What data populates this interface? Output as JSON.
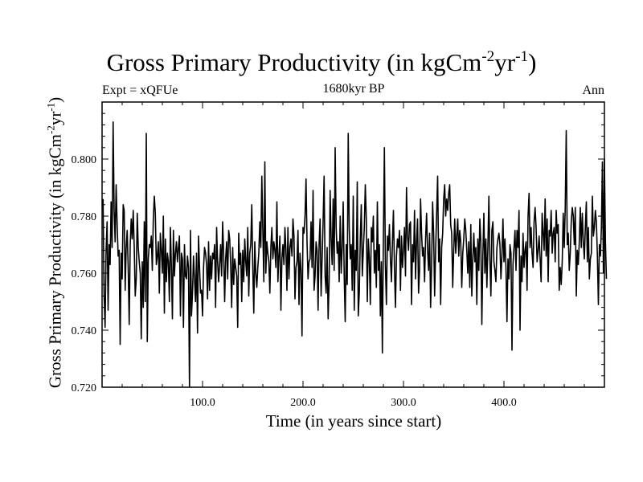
{
  "chart_data": {
    "type": "line",
    "title": {
      "text": "Gross Primary Productivity (in kgCm",
      "sup1": "-2",
      "mid": "yr",
      "sup2": "-1",
      "end": ")"
    },
    "subtitle": "1680kyr BP",
    "left_label": "Expt = xQFUe",
    "right_label": "Ann",
    "xlabel": "Time (in years since start)",
    "ylabel": {
      "text": "Gross Primary Productivity (in kgCm",
      "sup1": "-2",
      "mid": "yr",
      "sup2": "-1",
      "end": ")"
    },
    "xlim": [
      0,
      500
    ],
    "ylim": [
      0.72,
      0.82
    ],
    "xticks": [
      100,
      200,
      300,
      400
    ],
    "xtick_labels": [
      "100.0",
      "200.0",
      "300.0",
      "400.0"
    ],
    "yticks": [
      0.72,
      0.74,
      0.76,
      0.78,
      0.8
    ],
    "ytick_labels": [
      "0.720",
      "0.740",
      "0.760",
      "0.780",
      "0.800"
    ],
    "series": [
      {
        "name": "Gross Primary Productivity",
        "color": "#000000",
        "x_start": 1,
        "x_step": 1,
        "values": [
          0.786,
          0.752,
          0.741,
          0.768,
          0.778,
          0.747,
          0.77,
          0.763,
          0.785,
          0.769,
          0.813,
          0.782,
          0.771,
          0.791,
          0.777,
          0.766,
          0.768,
          0.735,
          0.767,
          0.758,
          0.784,
          0.782,
          0.754,
          0.769,
          0.775,
          0.762,
          0.742,
          0.77,
          0.779,
          0.772,
          0.782,
          0.769,
          0.752,
          0.758,
          0.781,
          0.769,
          0.764,
          0.76,
          0.737,
          0.764,
          0.748,
          0.778,
          0.75,
          0.809,
          0.736,
          0.765,
          0.77,
          0.769,
          0.773,
          0.761,
          0.779,
          0.787,
          0.781,
          0.763,
          0.766,
          0.771,
          0.753,
          0.774,
          0.768,
          0.76,
          0.78,
          0.746,
          0.772,
          0.757,
          0.767,
          0.764,
          0.75,
          0.776,
          0.762,
          0.744,
          0.775,
          0.759,
          0.767,
          0.771,
          0.764,
          0.769,
          0.773,
          0.745,
          0.767,
          0.765,
          0.741,
          0.77,
          0.759,
          0.758,
          0.766,
          0.762,
          0.72,
          0.775,
          0.745,
          0.753,
          0.766,
          0.758,
          0.75,
          0.767,
          0.739,
          0.773,
          0.762,
          0.753,
          0.754,
          0.745,
          0.762,
          0.769,
          0.767,
          0.763,
          0.751,
          0.771,
          0.754,
          0.766,
          0.758,
          0.767,
          0.765,
          0.77,
          0.748,
          0.776,
          0.764,
          0.757,
          0.763,
          0.77,
          0.759,
          0.778,
          0.767,
          0.75,
          0.765,
          0.771,
          0.758,
          0.775,
          0.772,
          0.763,
          0.748,
          0.769,
          0.756,
          0.765,
          0.762,
          0.759,
          0.741,
          0.774,
          0.763,
          0.767,
          0.75,
          0.768,
          0.757,
          0.772,
          0.764,
          0.759,
          0.776,
          0.752,
          0.767,
          0.77,
          0.784,
          0.762,
          0.746,
          0.771,
          0.76,
          0.755,
          0.762,
          0.767,
          0.778,
          0.769,
          0.794,
          0.775,
          0.757,
          0.799,
          0.76,
          0.771,
          0.767,
          0.764,
          0.753,
          0.769,
          0.776,
          0.765,
          0.771,
          0.768,
          0.762,
          0.785,
          0.757,
          0.766,
          0.773,
          0.747,
          0.765,
          0.77,
          0.763,
          0.776,
          0.768,
          0.754,
          0.776,
          0.758,
          0.769,
          0.772,
          0.766,
          0.779,
          0.773,
          0.751,
          0.762,
          0.764,
          0.775,
          0.749,
          0.767,
          0.761,
          0.738,
          0.776,
          0.774,
          0.78,
          0.793,
          0.771,
          0.758,
          0.764,
          0.765,
          0.778,
          0.762,
          0.789,
          0.754,
          0.759,
          0.771,
          0.768,
          0.747,
          0.77,
          0.779,
          0.752,
          0.765,
          0.778,
          0.794,
          0.759,
          0.753,
          0.769,
          0.744,
          0.757,
          0.789,
          0.772,
          0.763,
          0.786,
          0.761,
          0.804,
          0.776,
          0.767,
          0.771,
          0.757,
          0.78,
          0.76,
          0.769,
          0.785,
          0.759,
          0.743,
          0.77,
          0.756,
          0.809,
          0.776,
          0.765,
          0.77,
          0.754,
          0.787,
          0.747,
          0.768,
          0.761,
          0.792,
          0.745,
          0.753,
          0.772,
          0.784,
          0.759,
          0.768,
          0.776,
          0.791,
          0.779,
          0.75,
          0.772,
          0.765,
          0.749,
          0.776,
          0.771,
          0.78,
          0.76,
          0.768,
          0.755,
          0.785,
          0.761,
          0.77,
          0.745,
          0.764,
          0.732,
          0.773,
          0.804,
          0.763,
          0.749,
          0.773,
          0.768,
          0.777,
          0.765,
          0.757,
          0.771,
          0.782,
          0.762,
          0.748,
          0.766,
          0.772,
          0.769,
          0.775,
          0.754,
          0.773,
          0.762,
          0.768,
          0.776,
          0.759,
          0.79,
          0.773,
          0.768,
          0.777,
          0.778,
          0.749,
          0.77,
          0.764,
          0.782,
          0.758,
          0.771,
          0.779,
          0.753,
          0.761,
          0.786,
          0.774,
          0.766,
          0.769,
          0.757,
          0.772,
          0.781,
          0.768,
          0.761,
          0.774,
          0.748,
          0.763,
          0.785,
          0.774,
          0.752,
          0.768,
          0.781,
          0.794,
          0.764,
          0.772,
          0.749,
          0.769,
          0.774,
          0.786,
          0.791,
          0.78,
          0.786,
          0.782,
          0.788,
          0.791,
          0.777,
          0.774,
          0.755,
          0.768,
          0.779,
          0.767,
          0.773,
          0.779,
          0.766,
          0.775,
          0.771,
          0.755,
          0.767,
          0.772,
          0.779,
          0.775,
          0.768,
          0.76,
          0.771,
          0.755,
          0.777,
          0.752,
          0.765,
          0.774,
          0.764,
          0.769,
          0.749,
          0.772,
          0.761,
          0.779,
          0.771,
          0.742,
          0.766,
          0.781,
          0.76,
          0.772,
          0.755,
          0.769,
          0.787,
          0.765,
          0.752,
          0.775,
          0.778,
          0.764,
          0.761,
          0.757,
          0.769,
          0.772,
          0.774,
          0.77,
          0.758,
          0.766,
          0.779,
          0.764,
          0.772,
          0.762,
          0.743,
          0.765,
          0.758,
          0.77,
          0.767,
          0.733,
          0.763,
          0.769,
          0.775,
          0.761,
          0.775,
          0.769,
          0.782,
          0.74,
          0.766,
          0.757,
          0.774,
          0.762,
          0.768,
          0.771,
          0.754,
          0.78,
          0.788,
          0.769,
          0.776,
          0.767,
          0.762,
          0.778,
          0.783,
          0.776,
          0.764,
          0.768,
          0.773,
          0.765,
          0.757,
          0.781,
          0.774,
          0.768,
          0.786,
          0.766,
          0.779,
          0.757,
          0.775,
          0.773,
          0.782,
          0.767,
          0.774,
          0.776,
          0.764,
          0.782,
          0.774,
          0.777,
          0.754,
          0.762,
          0.756,
          0.764,
          0.781,
          0.769,
          0.783,
          0.81,
          0.77,
          0.774,
          0.761,
          0.767,
          0.778,
          0.783,
          0.78,
          0.77,
          0.783,
          0.752,
          0.768,
          0.763,
          0.771,
          0.783,
          0.769,
          0.781,
          0.771,
          0.765,
          0.776,
          0.785,
          0.764,
          0.776,
          0.758,
          0.765,
          0.767,
          0.787,
          0.773,
          0.776,
          0.782,
          0.778,
          0.766,
          0.749,
          0.77,
          0.766,
          0.776,
          0.799,
          0.76,
          0.8,
          0.771,
          0.758
        ]
      }
    ]
  }
}
